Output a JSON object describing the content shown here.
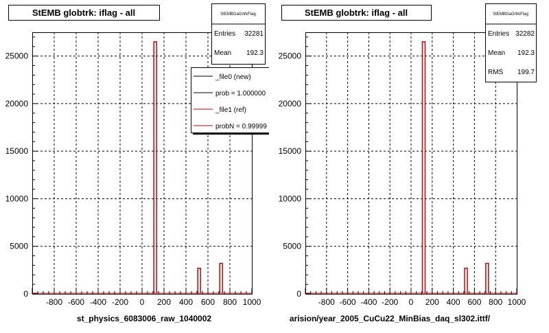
{
  "chart_data": [
    {
      "type": "bar",
      "title": "StEMB globtrk: iflag - all",
      "xlabel": "st_physics_6083006_raw_1040002",
      "ylabel": "",
      "xlim": [
        -1000,
        1000
      ],
      "ylim": [
        0,
        27500
      ],
      "xticks": [
        "-800",
        "-600",
        "-400",
        "-200",
        "0",
        "200",
        "400",
        "600",
        "800",
        "1000"
      ],
      "yticks": [
        "0",
        "5000",
        "10000",
        "15000",
        "20000",
        "25000"
      ],
      "grid": true,
      "stats": {
        "name": "StEMBGaGrtrkFlag",
        "rows": [
          {
            "label": "Entries",
            "value": "32281"
          },
          {
            "label": "Mean",
            "value": "192.3"
          }
        ]
      },
      "legend": {
        "placement": "top-right",
        "entries": [
          {
            "label": "_file0 (new)",
            "color": "#000000"
          },
          {
            "label": "prob = 1.000000",
            "color": "#000000"
          },
          {
            "label": "_file1 (ref)",
            "color": "#cc0000"
          },
          {
            "label": "probN = 0.99999",
            "color": "#cc0000"
          }
        ]
      },
      "series": [
        {
          "color": "#cc0000",
          "points": [
            {
              "x": 120,
              "y": 26500
            },
            {
              "x": 520,
              "y": 2700
            },
            {
              "x": 720,
              "y": 3200
            }
          ]
        }
      ]
    },
    {
      "type": "bar",
      "title": "StEMB globtrk: iflag - all",
      "xlabel": "arision/year_2005_CuCu22_MinBias_daq_sl302.ittf/",
      "ylabel": "",
      "xlim": [
        -1000,
        1000
      ],
      "ylim": [
        0,
        27500
      ],
      "xticks": [
        "-800",
        "-600",
        "-400",
        "-200",
        "0",
        "200",
        "400",
        "600",
        "800",
        "1000"
      ],
      "yticks": [
        "0",
        "5000",
        "10000",
        "15000",
        "20000",
        "25000"
      ],
      "grid": true,
      "stats": {
        "name": "StEMBGaGrtrkFlag",
        "rows": [
          {
            "label": "Entries",
            "value": "32282"
          },
          {
            "label": "Mean",
            "value": "192.3"
          },
          {
            "label": "RMS",
            "value": "199.7"
          }
        ]
      },
      "series": [
        {
          "color": "#cc0000",
          "points": [
            {
              "x": 120,
              "y": 26500
            },
            {
              "x": 520,
              "y": 2700
            },
            {
              "x": 720,
              "y": 3200
            }
          ]
        }
      ]
    }
  ]
}
